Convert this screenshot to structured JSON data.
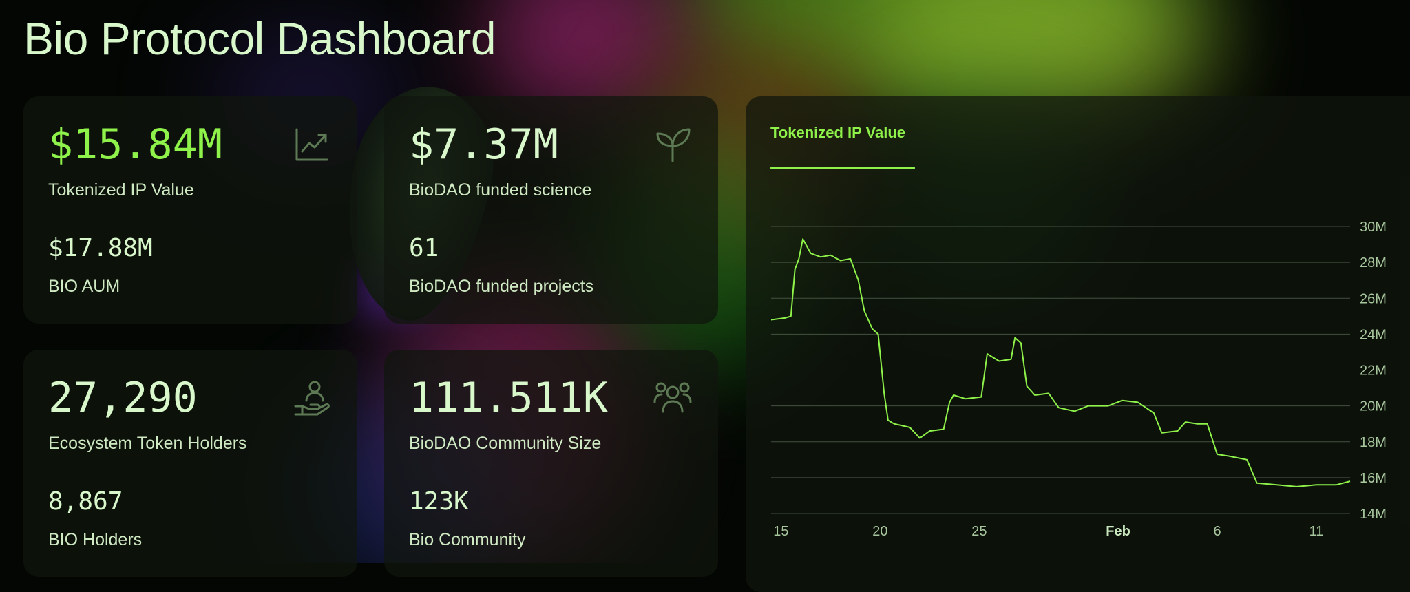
{
  "page_title": "Bio Protocol Dashboard",
  "colors": {
    "accent": "#8ef24a",
    "text": "#d8f7cb",
    "card_bg": "#10160e",
    "gridline": "#5a6b55"
  },
  "metrics": [
    {
      "value": "$15.84M",
      "label": "Tokenized IP Value",
      "sub_value": "$17.88M",
      "sub_label": "BIO AUM",
      "icon": "trending-chart-icon",
      "accent": true
    },
    {
      "value": "$7.37M",
      "label": "BioDAO funded science",
      "sub_value": "61",
      "sub_label": "BioDAO funded projects",
      "icon": "sprout-leaf-icon",
      "accent": false
    },
    {
      "value": "27,290",
      "label": "Ecosystem Token Holders",
      "sub_value": "8,867",
      "sub_label": "BIO Holders",
      "icon": "hand-holding-user-icon",
      "accent": false
    },
    {
      "value": "111.511K",
      "label": "BioDAO Community Size",
      "sub_value": "123K",
      "sub_label": "Bio Community",
      "icon": "users-group-icon",
      "accent": false
    }
  ],
  "chart": {
    "tab_label": "Tokenized IP Value"
  },
  "chart_data": {
    "type": "line",
    "title": "",
    "xlabel": "",
    "ylabel": "",
    "x_tick_labels": [
      "15",
      "20",
      "25",
      "Feb",
      "6",
      "11"
    ],
    "x_tick_days": [
      0,
      5,
      10,
      17,
      22,
      27
    ],
    "y_tick_labels": [
      "14M",
      "16M",
      "18M",
      "20M",
      "22M",
      "24M",
      "26M",
      "28M",
      "30M"
    ],
    "ylim": [
      14,
      30
    ],
    "y_unit": "M",
    "grid": true,
    "series": [
      {
        "values": [
          [
            -0.5,
            24.8
          ],
          [
            0.2,
            24.9
          ],
          [
            0.5,
            25.0
          ],
          [
            0.7,
            27.6
          ],
          [
            0.9,
            28.2
          ],
          [
            1.1,
            29.3
          ],
          [
            1.5,
            28.5
          ],
          [
            2.0,
            28.3
          ],
          [
            2.5,
            28.4
          ],
          [
            3.0,
            28.1
          ],
          [
            3.5,
            28.2
          ],
          [
            3.9,
            27.0
          ],
          [
            4.2,
            25.3
          ],
          [
            4.6,
            24.3
          ],
          [
            4.9,
            24.0
          ],
          [
            5.2,
            20.7
          ],
          [
            5.4,
            19.2
          ],
          [
            5.7,
            19.0
          ],
          [
            6.5,
            18.8
          ],
          [
            7.0,
            18.2
          ],
          [
            7.5,
            18.6
          ],
          [
            8.2,
            18.7
          ],
          [
            8.5,
            20.2
          ],
          [
            8.7,
            20.6
          ],
          [
            9.3,
            20.4
          ],
          [
            10.1,
            20.5
          ],
          [
            10.4,
            22.9
          ],
          [
            11.0,
            22.5
          ],
          [
            11.6,
            22.6
          ],
          [
            11.8,
            23.8
          ],
          [
            12.1,
            23.5
          ],
          [
            12.4,
            21.1
          ],
          [
            12.8,
            20.6
          ],
          [
            13.5,
            20.7
          ],
          [
            14.0,
            19.9
          ],
          [
            14.8,
            19.7
          ],
          [
            15.5,
            20.0
          ],
          [
            16.5,
            20.0
          ],
          [
            17.2,
            20.3
          ],
          [
            18.0,
            20.2
          ],
          [
            18.8,
            19.6
          ],
          [
            19.2,
            18.5
          ],
          [
            20.0,
            18.6
          ],
          [
            20.4,
            19.1
          ],
          [
            21.0,
            19.0
          ],
          [
            21.5,
            19.0
          ],
          [
            22.0,
            17.3
          ],
          [
            22.6,
            17.2
          ],
          [
            23.5,
            17.0
          ],
          [
            24.0,
            15.7
          ],
          [
            25.0,
            15.6
          ],
          [
            26.0,
            15.5
          ],
          [
            27.0,
            15.6
          ],
          [
            28.0,
            15.6
          ],
          [
            28.7,
            15.8
          ]
        ]
      }
    ]
  }
}
